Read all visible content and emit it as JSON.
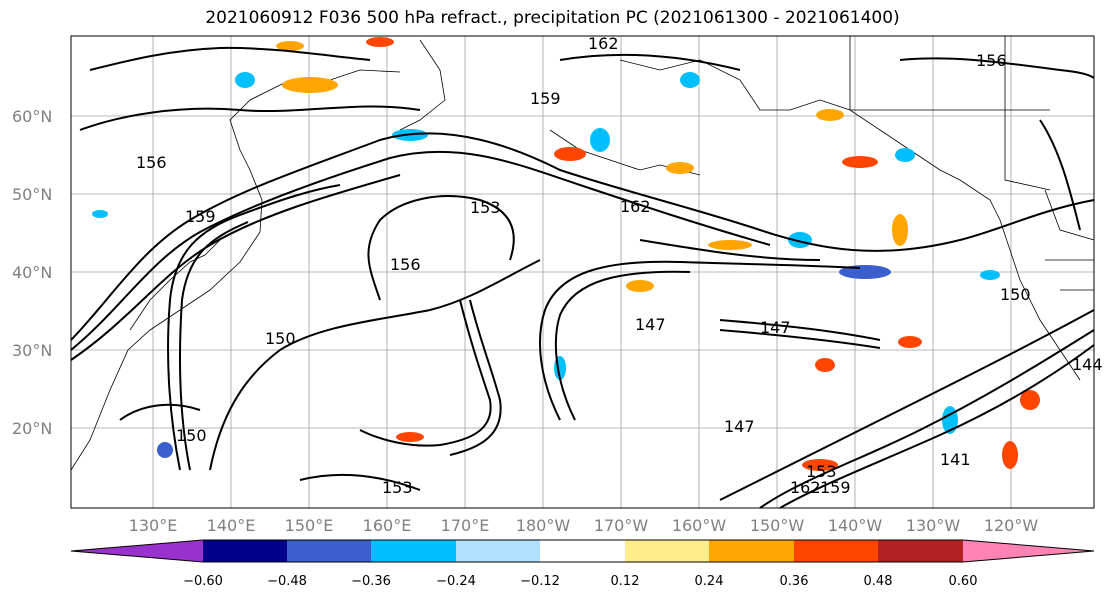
{
  "title": "2021060912 F036 500 hPa refract., precipitation PC (2021061300 - 2021061400)",
  "lat_labels": [
    "60°N",
    "50°N",
    "40°N",
    "30°N",
    "20°N"
  ],
  "lon_labels": [
    "130°E",
    "140°E",
    "150°E",
    "160°E",
    "170°E",
    "180°W",
    "170°W",
    "160°W",
    "150°W",
    "140°W",
    "130°W",
    "120°W"
  ],
  "contour_labels": [
    "162",
    "159",
    "156",
    "153",
    "150",
    "147",
    "144",
    "141"
  ],
  "colorbar": {
    "ticks": [
      "−0.60",
      "−0.48",
      "−0.36",
      "−0.24",
      "−0.12",
      "0.12",
      "0.24",
      "0.36",
      "0.48",
      "0.60"
    ],
    "colors": [
      "#9932cc",
      "#00008b",
      "#3a5fcd",
      "#00bfff",
      "#b0e2ff",
      "#ffffff",
      "#ffec8b",
      "#ffa500",
      "#ff4500",
      "#b22222",
      "#ff83b4"
    ]
  }
}
